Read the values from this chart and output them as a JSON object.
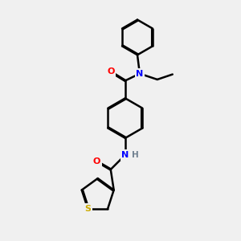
{
  "background_color": "#f0f0f0",
  "bond_color": "#000000",
  "atom_colors": {
    "O": "#ff0000",
    "N": "#0000ff",
    "N_gray": "#708090",
    "S": "#ccaa00",
    "C": "#000000",
    "H": "#000000"
  },
  "line_width": 1.8,
  "dbo": 0.018
}
